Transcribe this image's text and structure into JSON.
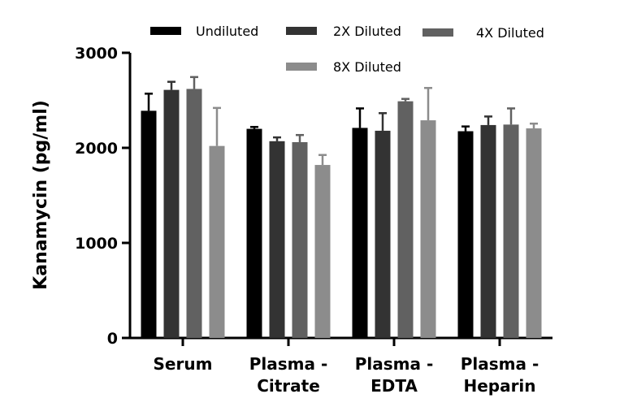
{
  "chart_data": {
    "type": "bar",
    "title": "",
    "xlabel": "",
    "ylabel": "Kanamycin (pg/ml)",
    "ylim": [
      0,
      3000
    ],
    "yticks": [
      0,
      1000,
      2000,
      3000
    ],
    "grid": false,
    "legend_position": "top",
    "categories": [
      [
        "Serum"
      ],
      [
        "Plasma -",
        "Citrate"
      ],
      [
        "Plasma -",
        "EDTA"
      ],
      [
        "Plasma -",
        "Heparin"
      ]
    ],
    "series": [
      {
        "name": "Undiluted",
        "color": "#000000",
        "values": [
          2390,
          2200,
          2210,
          2175
        ],
        "errors": [
          180,
          20,
          205,
          50
        ]
      },
      {
        "name": "2X Diluted",
        "color": "#333333",
        "values": [
          2610,
          2070,
          2180,
          2240
        ],
        "errors": [
          85,
          40,
          185,
          90
        ]
      },
      {
        "name": "4X Diluted",
        "color": "#616161",
        "values": [
          2620,
          2060,
          2490,
          2245
        ],
        "errors": [
          125,
          75,
          25,
          170
        ]
      },
      {
        "name": "8X Diluted",
        "color": "#8c8c8c",
        "values": [
          2020,
          1820,
          2290,
          2205
        ],
        "errors": [
          400,
          105,
          340,
          50
        ]
      }
    ]
  }
}
